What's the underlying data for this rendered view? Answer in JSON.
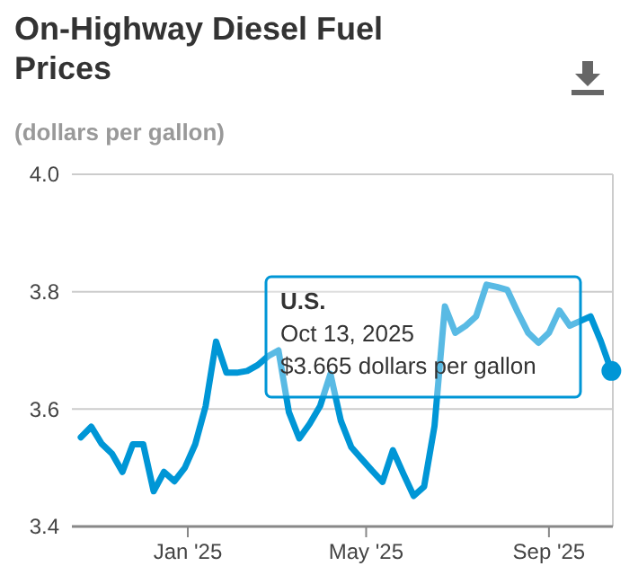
{
  "chart_data": {
    "type": "line",
    "title": "On-Highway Diesel Fuel Prices",
    "subtitle": "(dollars per gallon)",
    "x": [
      "2024-10-21",
      "2024-10-28",
      "2024-11-04",
      "2024-11-11",
      "2024-11-18",
      "2024-11-25",
      "2024-12-02",
      "2024-12-09",
      "2024-12-16",
      "2024-12-23",
      "2024-12-30",
      "2025-01-06",
      "2025-01-13",
      "2025-01-20",
      "2025-01-27",
      "2025-02-03",
      "2025-02-10",
      "2025-02-17",
      "2025-02-24",
      "2025-03-03",
      "2025-03-10",
      "2025-03-17",
      "2025-03-24",
      "2025-03-31",
      "2025-04-07",
      "2025-04-14",
      "2025-04-21",
      "2025-04-28",
      "2025-05-05",
      "2025-05-12",
      "2025-05-19",
      "2025-05-26",
      "2025-06-02",
      "2025-06-09",
      "2025-06-16",
      "2025-06-23",
      "2025-06-30",
      "2025-07-07",
      "2025-07-14",
      "2025-07-21",
      "2025-07-28",
      "2025-08-04",
      "2025-08-11",
      "2025-08-18",
      "2025-08-25",
      "2025-09-01",
      "2025-09-08",
      "2025-09-15",
      "2025-09-22",
      "2025-09-29",
      "2025-10-06",
      "2025-10-13"
    ],
    "series": [
      {
        "color": "#0096d6",
        "values": [
          3.552,
          3.57,
          3.541,
          3.524,
          3.493,
          3.54,
          3.54,
          3.46,
          3.493,
          3.477,
          3.5,
          3.54,
          3.605,
          3.715,
          3.662,
          3.662,
          3.665,
          3.675,
          3.69,
          3.7,
          3.595,
          3.55,
          3.575,
          3.605,
          3.66,
          3.58,
          3.535,
          3.515,
          3.495,
          3.476,
          3.53,
          3.49,
          3.452,
          3.468,
          3.571,
          3.775,
          3.73,
          3.742,
          3.758,
          3.812,
          3.808,
          3.803,
          3.765,
          3.73,
          3.713,
          3.73,
          3.768,
          3.742,
          3.75,
          3.758,
          3.715,
          3.665
        ]
      }
    ],
    "xlim": [
      "2024-10-15",
      "2025-10-14"
    ],
    "xticks": [
      {
        "value": "2025-01-01",
        "label": "Jan '25"
      },
      {
        "value": "2025-05-01",
        "label": "May '25"
      },
      {
        "value": "2025-09-01",
        "label": "Sep '25"
      }
    ],
    "ylim": [
      3.4,
      4.0
    ],
    "yticks": [
      3.4,
      3.6,
      3.8,
      {
        "value": 4.0,
        "label": "4.0"
      }
    ],
    "grid": "y",
    "marker": "none",
    "line_style": "solid",
    "annotations": [
      "U.S.\nOct 13, 2025\n$3.665 dollars per gallon"
    ]
  }
}
